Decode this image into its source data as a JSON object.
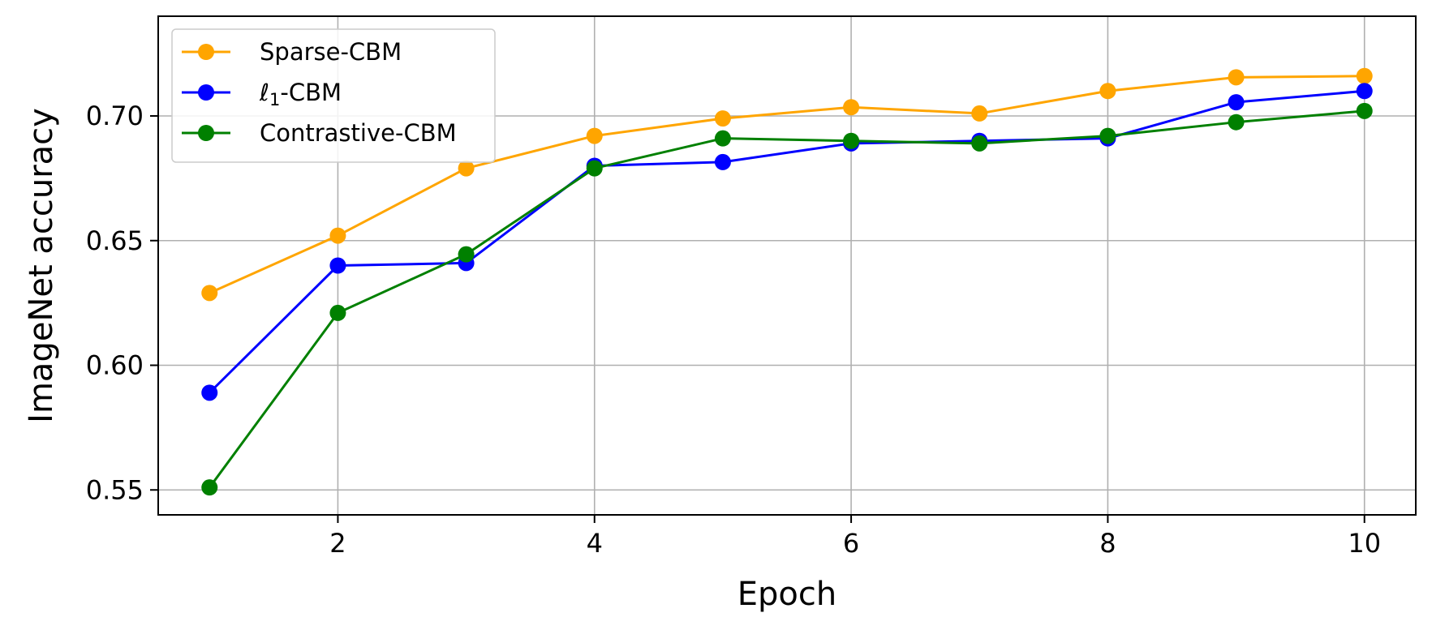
{
  "chart_data": {
    "type": "line",
    "xlabel": "Epoch",
    "ylabel": "ImageNet accuracy",
    "xlim": [
      0.6,
      10.4
    ],
    "ylim": [
      0.54,
      0.74
    ],
    "x": [
      1,
      2,
      3,
      4,
      5,
      6,
      7,
      8,
      9,
      10
    ],
    "xticks": [
      2,
      4,
      6,
      8,
      10
    ],
    "xtick_labels": [
      "2",
      "4",
      "6",
      "8",
      "10"
    ],
    "yticks": [
      0.55,
      0.6,
      0.65,
      0.7
    ],
    "ytick_labels": [
      "0.55",
      "0.60",
      "0.65",
      "0.70"
    ],
    "grid": true,
    "legend_position": "top-left",
    "series": [
      {
        "name": "Sparse-CBM",
        "color": "#FFA500",
        "values": [
          0.629,
          0.652,
          0.679,
          0.692,
          0.699,
          0.7035,
          0.701,
          0.71,
          0.7155,
          0.716
        ]
      },
      {
        "name": "ℓ1-CBM",
        "name_main": "ℓ",
        "name_sub": "1",
        "name_suffix": "-CBM",
        "color": "#0000FF",
        "values": [
          0.589,
          0.64,
          0.641,
          0.68,
          0.6815,
          0.689,
          0.69,
          0.691,
          0.7055,
          0.71
        ]
      },
      {
        "name": "Contrastive-CBM",
        "color": "#008000",
        "values": [
          0.551,
          0.621,
          0.6445,
          0.679,
          0.691,
          0.69,
          0.689,
          0.692,
          0.6975,
          0.702
        ]
      }
    ]
  }
}
